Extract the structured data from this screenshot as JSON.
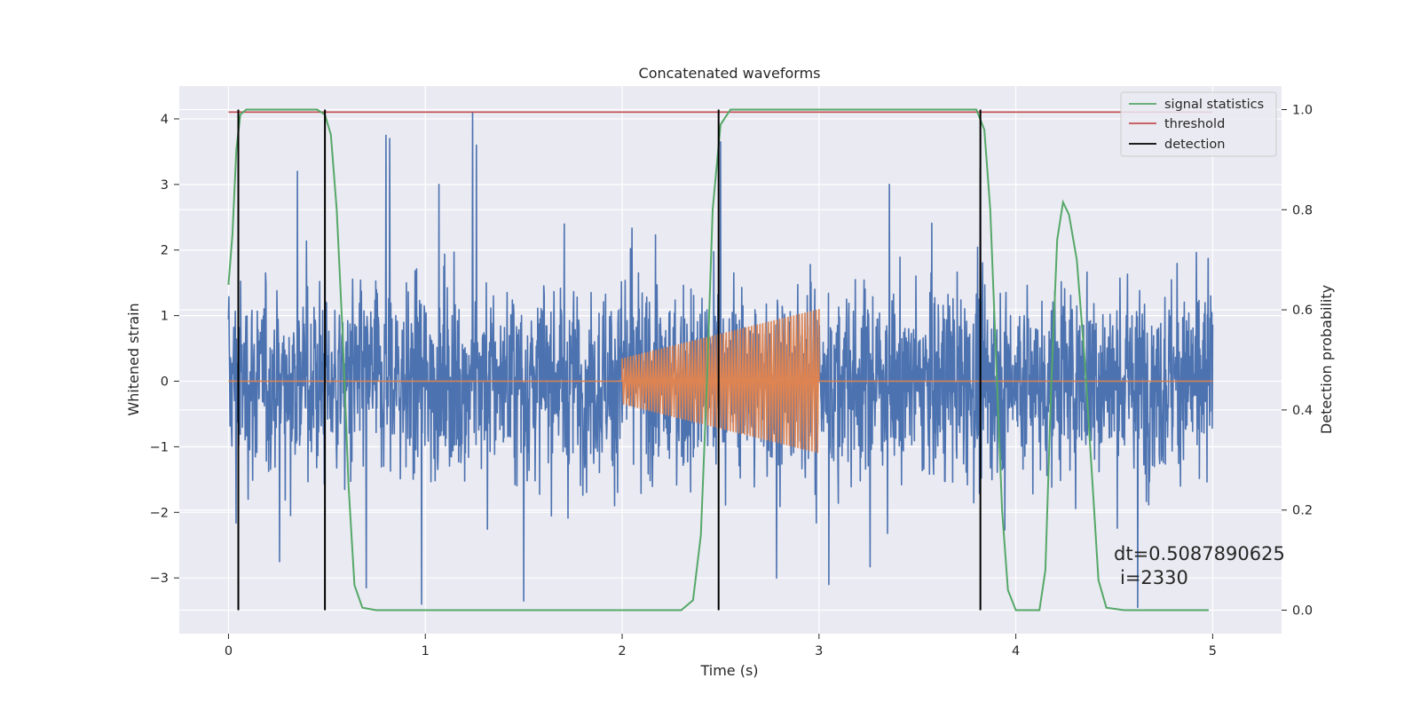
{
  "chart_data": {
    "type": "line",
    "title": "Concatenated waveforms",
    "xlabel": "Time (s)",
    "ylabel": "Whitened strain",
    "y2label": "Detection probability",
    "xlim": [
      -0.25,
      5.35
    ],
    "ylim": [
      -3.85,
      4.5
    ],
    "y2lim": [
      -0.047,
      1.047
    ],
    "xticks": [
      0,
      1,
      2,
      3,
      4,
      5
    ],
    "yticks": [
      -3,
      -2,
      -1,
      0,
      1,
      2,
      3,
      4
    ],
    "y2ticks": [
      0.0,
      0.2,
      0.4,
      0.6,
      0.8,
      1.0
    ],
    "grid": true,
    "legend_position": "top-right",
    "legend": [
      "signal statistics",
      "threshold",
      "detection"
    ],
    "annotation": {
      "line1": "dt=0.5087890625",
      "line2": "i=2330"
    },
    "colors": {
      "strain": "#4c72b0",
      "waveform": "#dd8452",
      "signal_statistics": "#55a868",
      "threshold": "#c44e52",
      "detection": "#000000",
      "background": "#eaeaf2",
      "grid": "#ffffff"
    },
    "strain": {
      "x_range": [
        0,
        5
      ],
      "typical_abs": 1.0,
      "spikes": [
        {
          "x": 0.8,
          "y": 3.75
        },
        {
          "x": 0.82,
          "y": 3.7
        },
        {
          "x": 1.24,
          "y": 4.1
        },
        {
          "x": 1.26,
          "y": 3.6
        },
        {
          "x": 0.35,
          "y": 3.2
        },
        {
          "x": 2.5,
          "y": 3.65
        },
        {
          "x": 3.82,
          "y": 3.25
        },
        {
          "x": 0.98,
          "y": -3.4
        },
        {
          "x": 1.5,
          "y": -3.35
        },
        {
          "x": 0.7,
          "y": -3.15
        },
        {
          "x": 3.05,
          "y": -3.1
        },
        {
          "x": 4.62,
          "y": -3.45
        }
      ]
    },
    "waveform": {
      "start": 2.0,
      "end": 3.0,
      "amplitude_start": 0.35,
      "amplitude_end": 1.1,
      "cycles": 70
    },
    "threshold_value": 0.995,
    "detections": [
      0.05,
      0.49,
      2.49,
      3.82
    ],
    "signal_statistics": [
      {
        "x": 0.0,
        "y": 0.65
      },
      {
        "x": 0.02,
        "y": 0.75
      },
      {
        "x": 0.04,
        "y": 0.92
      },
      {
        "x": 0.06,
        "y": 0.99
      },
      {
        "x": 0.09,
        "y": 1.0
      },
      {
        "x": 0.45,
        "y": 1.0
      },
      {
        "x": 0.49,
        "y": 0.99
      },
      {
        "x": 0.52,
        "y": 0.95
      },
      {
        "x": 0.55,
        "y": 0.8
      },
      {
        "x": 0.58,
        "y": 0.55
      },
      {
        "x": 0.61,
        "y": 0.25
      },
      {
        "x": 0.64,
        "y": 0.05
      },
      {
        "x": 0.68,
        "y": 0.005
      },
      {
        "x": 0.75,
        "y": 0.0
      },
      {
        "x": 2.3,
        "y": 0.0
      },
      {
        "x": 2.36,
        "y": 0.02
      },
      {
        "x": 2.4,
        "y": 0.15
      },
      {
        "x": 2.43,
        "y": 0.45
      },
      {
        "x": 2.46,
        "y": 0.8
      },
      {
        "x": 2.5,
        "y": 0.97
      },
      {
        "x": 2.55,
        "y": 1.0
      },
      {
        "x": 3.8,
        "y": 1.0
      },
      {
        "x": 3.84,
        "y": 0.96
      },
      {
        "x": 3.87,
        "y": 0.8
      },
      {
        "x": 3.9,
        "y": 0.5
      },
      {
        "x": 3.93,
        "y": 0.2
      },
      {
        "x": 3.96,
        "y": 0.04
      },
      {
        "x": 4.0,
        "y": 0.0
      },
      {
        "x": 4.12,
        "y": 0.0
      },
      {
        "x": 4.15,
        "y": 0.08
      },
      {
        "x": 4.18,
        "y": 0.45
      },
      {
        "x": 4.21,
        "y": 0.74
      },
      {
        "x": 4.24,
        "y": 0.815
      },
      {
        "x": 4.27,
        "y": 0.79
      },
      {
        "x": 4.31,
        "y": 0.7
      },
      {
        "x": 4.35,
        "y": 0.5
      },
      {
        "x": 4.39,
        "y": 0.25
      },
      {
        "x": 4.42,
        "y": 0.06
      },
      {
        "x": 4.46,
        "y": 0.005
      },
      {
        "x": 4.55,
        "y": 0.0
      },
      {
        "x": 4.98,
        "y": 0.0
      }
    ]
  }
}
